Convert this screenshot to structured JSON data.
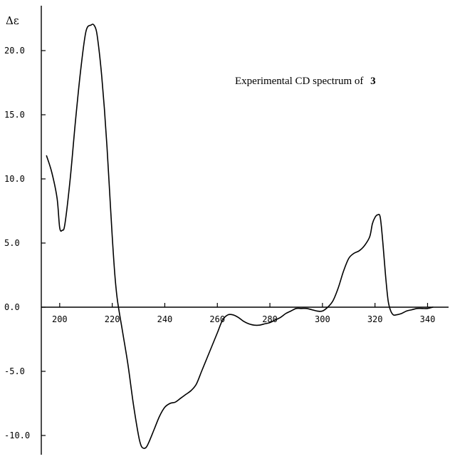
{
  "chart_data": {
    "type": "line",
    "title": "",
    "annotation": "Experimental CD spectrum of",
    "annotation_compound": "3",
    "ylabel": "Δε",
    "xlabel": "",
    "xlim": [
      193,
      348
    ],
    "ylim": [
      -11.5,
      23.5
    ],
    "xticks": [
      200,
      220,
      240,
      260,
      280,
      300,
      320,
      340
    ],
    "yticks": [
      20,
      15,
      10,
      5,
      0,
      -5,
      -10
    ],
    "ytick_labels": [
      "20.0",
      "15.0",
      "10.0",
      "5.0",
      "0.0",
      "-5.0",
      "-10.0"
    ],
    "grid": false,
    "series": [
      {
        "x": [
          195,
          197,
          199,
          200,
          201,
          202,
          204,
          206,
          208,
          210,
          212,
          213,
          214,
          215,
          216,
          217,
          218,
          219,
          220,
          221,
          222,
          224,
          226,
          228,
          230,
          231,
          232,
          233,
          234,
          236,
          238,
          240,
          242,
          244,
          246,
          248,
          250,
          252,
          254,
          256,
          258,
          260,
          262,
          264,
          266,
          268,
          270,
          272,
          274,
          276,
          278,
          280,
          282,
          284,
          286,
          288,
          290,
          292,
          294,
          296,
          298,
          300,
          302,
          304,
          306,
          308,
          310,
          312,
          314,
          316,
          318,
          319,
          320,
          321,
          322,
          323,
          324,
          325,
          326,
          327,
          328,
          330,
          332,
          334,
          336,
          338,
          340,
          342
        ],
        "y": [
          11.8,
          10.5,
          8.5,
          6.2,
          6.0,
          6.5,
          10.0,
          14.5,
          18.5,
          21.5,
          22.0,
          22.0,
          21.5,
          20.0,
          18.0,
          15.5,
          12.5,
          9.0,
          5.5,
          2.5,
          0.5,
          -2.0,
          -4.5,
          -7.5,
          -10.0,
          -10.8,
          -11.0,
          -10.9,
          -10.5,
          -9.5,
          -8.5,
          -7.8,
          -7.5,
          -7.4,
          -7.1,
          -6.8,
          -6.5,
          -6.0,
          -5.0,
          -4.0,
          -3.0,
          -2.0,
          -1.0,
          -0.6,
          -0.6,
          -0.8,
          -1.1,
          -1.3,
          -1.4,
          -1.4,
          -1.3,
          -1.2,
          -1.0,
          -0.8,
          -0.5,
          -0.3,
          -0.1,
          -0.1,
          -0.1,
          -0.2,
          -0.3,
          -0.3,
          0.0,
          0.5,
          1.5,
          2.8,
          3.8,
          4.2,
          4.4,
          4.8,
          5.5,
          6.5,
          7.0,
          7.2,
          7.0,
          5.0,
          2.5,
          0.5,
          -0.3,
          -0.6,
          -0.6,
          -0.5,
          -0.3,
          -0.2,
          -0.1,
          -0.1,
          -0.1,
          0.0
        ]
      }
    ]
  }
}
